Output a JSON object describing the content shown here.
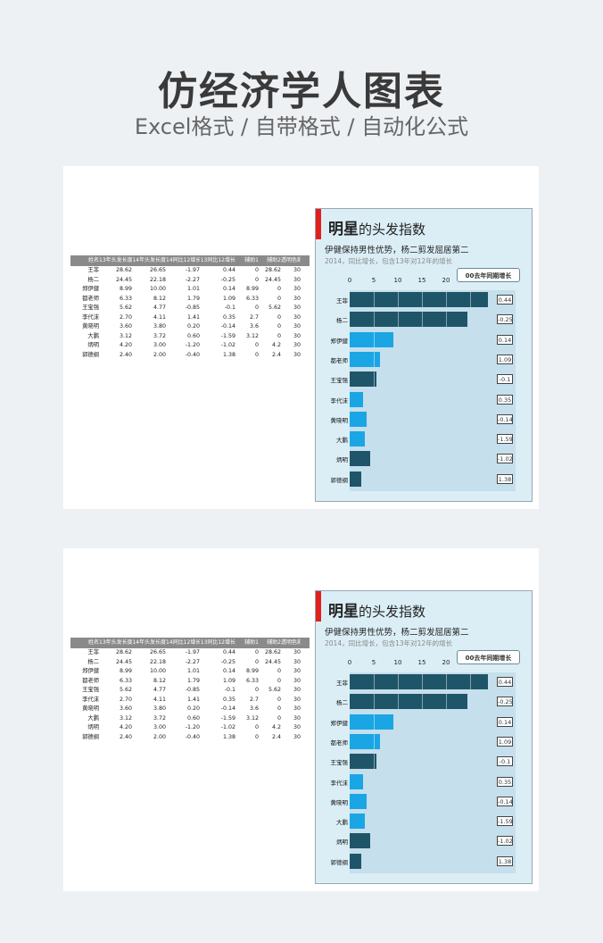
{
  "page": {
    "title": "仿经济学人图表",
    "subtitle": "Excel格式 / 自带格式 / 自动化公式"
  },
  "table": {
    "headers": [
      "姓名",
      "13年头发长度",
      "14年头发长度",
      "14同比12增长",
      "13同比12增长",
      "辅助1",
      "辅助2",
      "透明色彩"
    ],
    "rows": [
      [
        "王菲",
        "28.62",
        "26.65",
        "-1.97",
        "0.44",
        "0",
        "28.62",
        "30"
      ],
      [
        "杨二",
        "24.45",
        "22.18",
        "-2.27",
        "-0.25",
        "0",
        "24.45",
        "30"
      ],
      [
        "郑伊健",
        "8.99",
        "10.00",
        "1.01",
        "0.14",
        "8.99",
        "0",
        "30"
      ],
      [
        "都老师",
        "6.33",
        "8.12",
        "1.79",
        "1.09",
        "6.33",
        "0",
        "30"
      ],
      [
        "王宝强",
        "5.62",
        "4.77",
        "-0.85",
        "-0.1",
        "0",
        "5.62",
        "30"
      ],
      [
        "李代沫",
        "2.70",
        "4.11",
        "1.41",
        "0.35",
        "2.7",
        "0",
        "30"
      ],
      [
        "黄晓明",
        "3.60",
        "3.80",
        "0.20",
        "-0.14",
        "3.6",
        "0",
        "30"
      ],
      [
        "大鹏",
        "3.12",
        "3.72",
        "0.60",
        "-1.59",
        "3.12",
        "0",
        "30"
      ],
      [
        "炳明",
        "4.20",
        "3.00",
        "-1.20",
        "-1.02",
        "0",
        "4.2",
        "30"
      ],
      [
        "郭德纲",
        "2.40",
        "2.00",
        "-0.40",
        "1.38",
        "0",
        "2.4",
        "30"
      ]
    ]
  },
  "chart": {
    "title_big": "明星",
    "title_small": "的头发指数",
    "subtitle": "伊健保持男性优势，杨二剪发屈居第二",
    "note": "2014，同比增长，包含13年对12年的增长",
    "legend": "00去年同期增长",
    "ticks": [
      "0",
      "5",
      "10",
      "15",
      "20"
    ]
  },
  "chart_data": {
    "type": "bar",
    "categories": [
      "王菲",
      "杨二",
      "郑伊健",
      "都老师",
      "王宝强",
      "李代沫",
      "黄晓明",
      "大鹏",
      "炳明",
      "郭德纲"
    ],
    "values": [
      28.62,
      24.45,
      8.99,
      6.33,
      5.62,
      2.7,
      3.6,
      3.12,
      4.2,
      2.4
    ],
    "highlight": [
      false,
      false,
      true,
      true,
      false,
      true,
      true,
      true,
      false,
      false
    ],
    "change_labels": [
      "0.44",
      "-0.25",
      "0.14",
      "1.09",
      "-0.1",
      "0.35",
      "-0.14",
      "-1.59",
      "-1.02",
      "1.38"
    ],
    "xlim": [
      0,
      30
    ],
    "colors": {
      "dark": "#1f5569",
      "light": "#1aa6e4",
      "background": "#dbeef6"
    }
  }
}
